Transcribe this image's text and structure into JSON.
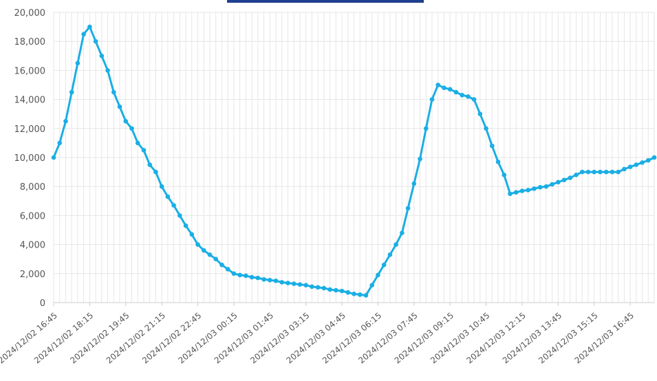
{
  "chart_data": {
    "type": "line",
    "title": "",
    "xlabel": "",
    "ylabel": "",
    "ylim": [
      0,
      20000
    ],
    "yticks": [
      0,
      2000,
      4000,
      6000,
      8000,
      10000,
      12000,
      14000,
      16000,
      18000,
      20000
    ],
    "ytick_labels": [
      "0",
      "2,000",
      "4,000",
      "6,000",
      "8,000",
      "10,000",
      "12,000",
      "14,000",
      "16,000",
      "18,000",
      "20,000"
    ],
    "x_interval_minutes": 15,
    "x_start": "2024/12/02 16:45",
    "xtick_labels": [
      "2024/12/02 16:45",
      "2024/12/02 18:15",
      "2024/12/02 19:45",
      "2024/12/02 21:15",
      "2024/12/02 22:45",
      "2024/12/03 00:15",
      "2024/12/03 01:45",
      "2024/12/03 03:15",
      "2024/12/03 04:45",
      "2024/12/03 06:15",
      "2024/12/03 07:45",
      "2024/12/03 09:15",
      "2024/12/03 10:45",
      "2024/12/03 12:15",
      "2024/12/03 13:45",
      "2024/12/03 15:15",
      "2024/12/03 16:45"
    ],
    "grid": true,
    "legend": "top",
    "colors": {
      "line": "#1aaee5",
      "legend": "#1f3f8f",
      "grid": "#e6e6e6",
      "axis": "#cccccc"
    },
    "series": [
      {
        "values": [
          10000,
          11000,
          12500,
          14500,
          16500,
          18500,
          19000,
          18000,
          17000,
          16000,
          14500,
          13500,
          12500,
          12000,
          11000,
          10500,
          9500,
          9000,
          8000,
          7300,
          6700,
          6000,
          5300,
          4700,
          4000,
          3600,
          3300,
          3000,
          2600,
          2300,
          2000,
          1900,
          1850,
          1750,
          1700,
          1600,
          1550,
          1500,
          1400,
          1350,
          1300,
          1250,
          1200,
          1100,
          1050,
          1000,
          900,
          850,
          800,
          700,
          600,
          550,
          500,
          1200,
          1900,
          2600,
          3300,
          4000,
          4800,
          6500,
          8200,
          9900,
          12000,
          14000,
          15000,
          14800,
          14700,
          14500,
          14300,
          14200,
          14000,
          13000,
          12000,
          10800,
          9700,
          8800,
          7500,
          7600,
          7700,
          7750,
          7850,
          7950,
          8000,
          8150,
          8300,
          8450,
          8600,
          8800,
          9000,
          9000,
          9000,
          9000,
          9000,
          9000,
          9000,
          9200,
          9350,
          9500,
          9650,
          9800,
          10000
        ]
      }
    ]
  }
}
